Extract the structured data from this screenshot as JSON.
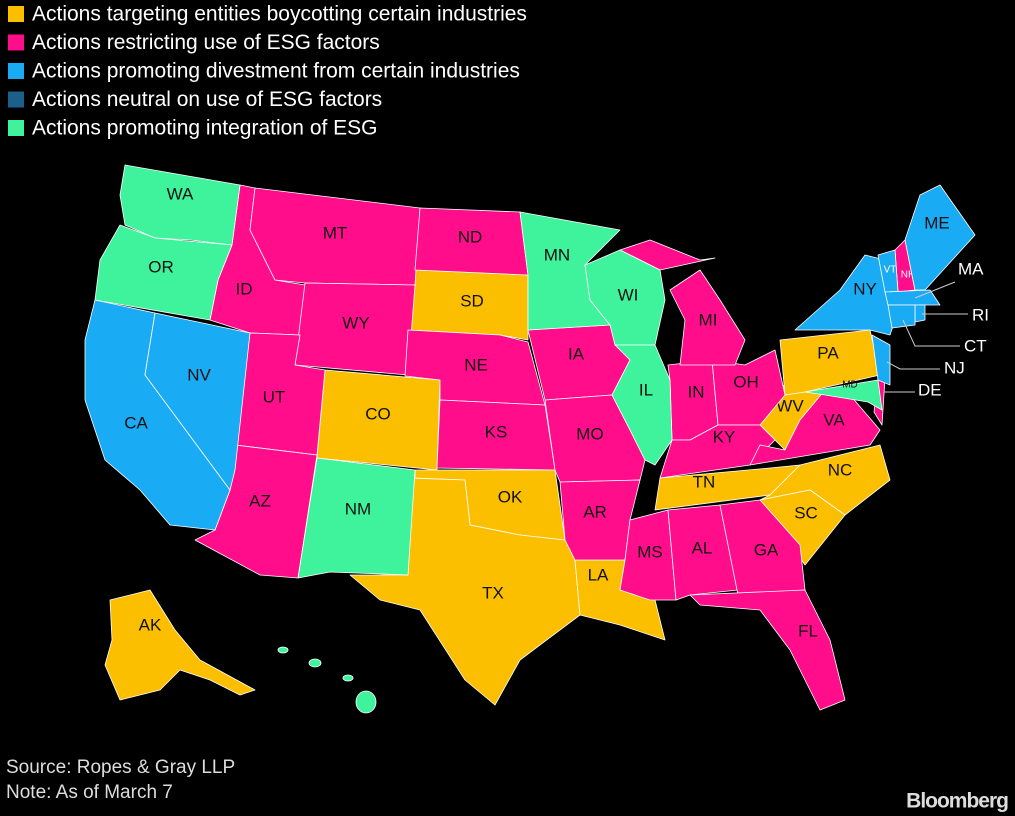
{
  "legend": [
    {
      "label": "Actions targeting entities boycotting certain industries",
      "color": "#fcbf00",
      "states": [
        "SD",
        "CO",
        "OK",
        "TX",
        "LA",
        "TN",
        "NC",
        "SC",
        "WV",
        "PA",
        "AK"
      ]
    },
    {
      "label": "Actions restricting use of ESG factors",
      "color": "#ff0d8a",
      "states": [
        "ID",
        "MT",
        "WY",
        "UT",
        "AZ",
        "ND",
        "NE",
        "KS",
        "IA",
        "MO",
        "AR",
        "MS",
        "AL",
        "GA",
        "FL",
        "IN",
        "OH",
        "KY",
        "VA",
        "MI",
        "NH",
        "DE"
      ]
    },
    {
      "label": "Actions promoting divestment from certain industries",
      "color": "#1aabf5",
      "states": [
        "CA",
        "NV",
        "NY",
        "VT",
        "ME",
        "MA",
        "RI",
        "CT",
        "NJ"
      ]
    },
    {
      "label": "Actions neutral on use of ESG factors",
      "color": "#1b5f8a",
      "states": []
    },
    {
      "label": "Actions promoting integration of ESG",
      "color": "#3ff29c",
      "states": [
        "WA",
        "OR",
        "MN",
        "WI",
        "IL",
        "NM",
        "MD"
      ]
    }
  ],
  "source": "Source: Ropes & Gray LLP",
  "note": "Note: As of March 7",
  "brand": "Bloomberg"
}
